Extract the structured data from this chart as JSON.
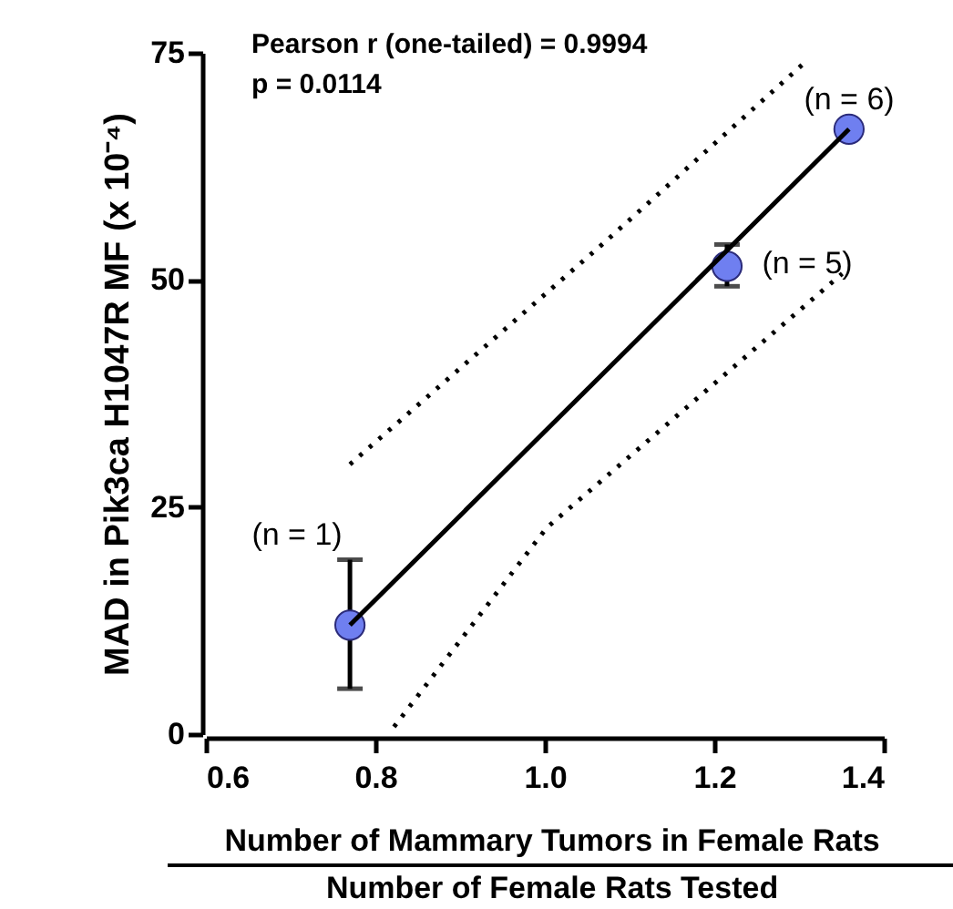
{
  "chart_data": {
    "type": "scatter",
    "xlabel": "Number of Mammary Tumors in Female Rats\nNumber of Female Rats Tested",
    "ylabel": "MAD in Pik3ca H1047R MF (x 10⁻⁴)",
    "xlim": [
      0.6,
      1.4
    ],
    "xticks": [
      0.6,
      0.8,
      {
        "value": 1.0,
        "label": "1.0"
      },
      1.2,
      1.4
    ],
    "ylim": [
      0,
      75
    ],
    "yticks": [
      0,
      25,
      50,
      75
    ],
    "grid": false,
    "series": [
      {
        "color": "#6f7ff0",
        "marker": "circle",
        "x": [
          0.77,
          1.215,
          1.359
        ],
        "values": [
          12.0,
          51.5,
          66.6
        ],
        "errors": [
          [
            5.0,
            19.2
          ],
          [
            49.3,
            53.9
          ],
          null
        ]
      },
      {
        "type": "line",
        "color": "#000000",
        "line_style": "solid",
        "x": [
          0.77,
          1.359
        ],
        "values": [
          12.0,
          66.6
        ]
      },
      {
        "type": "line",
        "color": "#000000",
        "line_style": "dotted",
        "x": [
          0.77,
          1.07,
          1.31
        ],
        "values": [
          29.7,
          54.1,
          74.2
        ]
      },
      {
        "type": "line",
        "color": "#000000",
        "line_style": "dotted",
        "x": [
          0.822,
          1.002,
          1.351
        ],
        "values": [
          0.8,
          22.7,
          50.7
        ]
      }
    ],
    "annotations": [
      "Pearson r (one-tailed) = 0.9994",
      "p = 0.0114",
      "(n = 1)",
      "(n = 5)",
      "(n = 6)"
    ]
  }
}
